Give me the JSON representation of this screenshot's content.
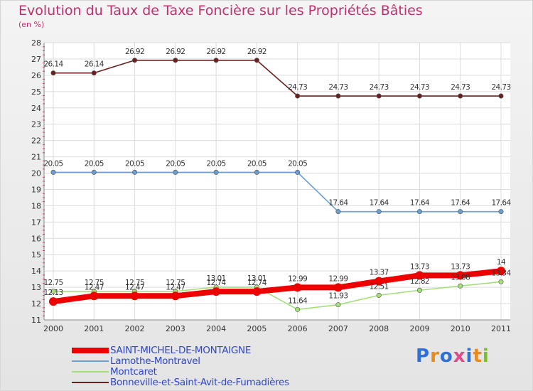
{
  "title": "Evolution du Taux de Taxe Foncière sur les Propriétés Bâties",
  "unit_label": "(en %)",
  "logo": {
    "letters": [
      "P",
      "r",
      "o",
      "x",
      "i",
      "t",
      "i"
    ],
    "colors": [
      "#2f6fd6",
      "#e98a1f",
      "#2f6fd6",
      "#e04a8a",
      "#2f6fd6",
      "#e98a1f",
      "#7bbf2a"
    ]
  },
  "chart_data": {
    "type": "line",
    "x": [
      "2000",
      "2001",
      "2002",
      "2003",
      "2004",
      "2005",
      "2006",
      "2007",
      "2008",
      "2009",
      "2010",
      "2011"
    ],
    "ylim": [
      11,
      28
    ],
    "yticks": [
      11,
      12,
      13,
      14,
      15,
      16,
      17,
      18,
      19,
      20,
      21,
      22,
      23,
      24,
      25,
      26,
      27,
      28
    ],
    "grid": true,
    "series": [
      {
        "name": "Bonneville-et-Saint-Avit-de-Fumadières",
        "color": "#6b1f1f",
        "values": [
          26.14,
          26.14,
          26.92,
          26.92,
          26.92,
          26.92,
          24.73,
          24.73,
          24.73,
          24.73,
          24.73,
          24.73
        ],
        "labels": [
          "26.14",
          "26.14",
          "26.92",
          "26.92",
          "26.92",
          "26.92",
          "24.73",
          "24.73",
          "24.73",
          "24.73",
          "24.73",
          "24.73"
        ]
      },
      {
        "name": "Lamothe-Montravel",
        "color": "#6a9ed2",
        "values": [
          20.05,
          20.05,
          20.05,
          20.05,
          20.05,
          20.05,
          20.05,
          17.64,
          17.64,
          17.64,
          17.64,
          17.64
        ],
        "labels": [
          "20.05",
          "20.05",
          "20.05",
          "20.05",
          "20.05",
          "20.05",
          "20.05",
          "17.64",
          "17.64",
          "17.64",
          "17.64",
          "17.64"
        ]
      },
      {
        "name": "Montcaret",
        "color": "#a3e07a",
        "values": [
          12.75,
          12.75,
          12.75,
          12.75,
          13.01,
          13.01,
          11.64,
          11.93,
          12.51,
          12.82,
          13.08,
          13.34
        ],
        "labels": [
          "12.75",
          "12.75",
          "12.75",
          "12.75",
          "13.01",
          "13.01",
          "11.64",
          "11.93",
          "12.51",
          "12.82",
          "13.08",
          "13.34"
        ]
      },
      {
        "name": "SAINT-MICHEL-DE-MONTAIGNE",
        "color": "#ee0000",
        "values": [
          12.13,
          12.47,
          12.47,
          12.47,
          12.74,
          12.74,
          12.99,
          12.99,
          13.37,
          13.73,
          13.73,
          14
        ],
        "labels": [
          "12.13",
          "12.47",
          "12.47",
          "12.47",
          "12.74",
          "12.74",
          "12.99",
          "12.99",
          "13.37",
          "13.73",
          "13.73",
          "14"
        ]
      }
    ],
    "legend": [
      {
        "name": "SAINT-MICHEL-DE-MONTAIGNE",
        "color": "#ee0000",
        "thick": true
      },
      {
        "name": "Lamothe-Montravel",
        "color": "#6a9ed2",
        "thick": false
      },
      {
        "name": "Montcaret",
        "color": "#a3e07a",
        "thick": false
      },
      {
        "name": "Bonneville-et-Saint-Avit-de-Fumadières",
        "color": "#6b1f1f",
        "thick": false
      }
    ]
  }
}
